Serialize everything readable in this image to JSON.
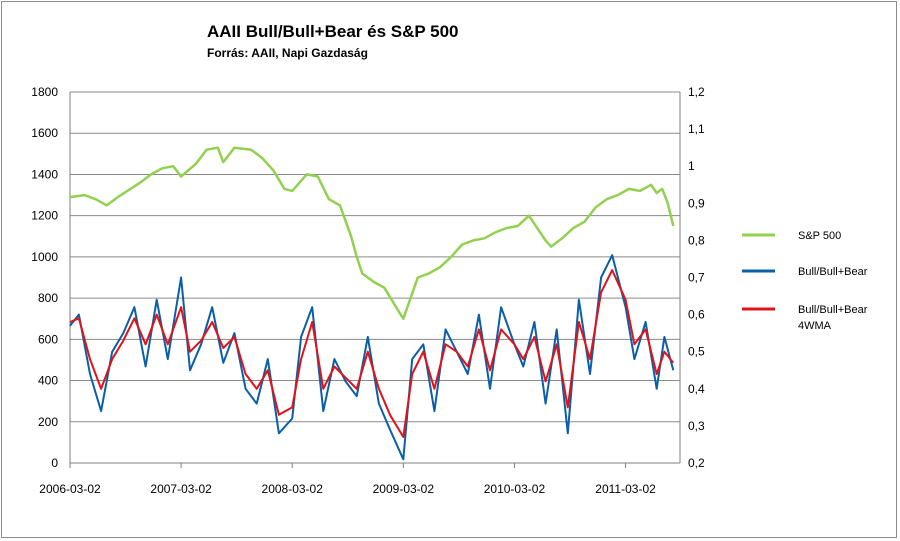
{
  "chart_data": {
    "type": "line",
    "title": "AAII Bull/Bull+Bear és S&P 500",
    "subtitle": "Forrás: AAII, Napi Gazdaság",
    "x_ticks": [
      "2006-03-02",
      "2007-03-02",
      "2008-03-02",
      "2009-03-02",
      "2010-03-02",
      "2011-03-02"
    ],
    "y_left": {
      "min": 0,
      "max": 1800,
      "step": 200,
      "ticks": [
        "0",
        "200",
        "400",
        "600",
        "800",
        "1000",
        "1200",
        "1400",
        "1600",
        "1800"
      ]
    },
    "y_right": {
      "min": 0.2,
      "max": 1.2,
      "step": 0.1,
      "ticks": [
        "0,2",
        "0,3",
        "0,4",
        "0,5",
        "0,6",
        "0,7",
        "0,8",
        "0,9",
        "1",
        "1,1",
        "1,2"
      ]
    },
    "grid": true,
    "legend_position": "right",
    "series": [
      {
        "name": "S&P 500",
        "axis": "left",
        "color": "#92d050",
        "x": [
          2006.17,
          2006.3,
          2006.4,
          2006.5,
          2006.6,
          2006.8,
          2006.9,
          2007.0,
          2007.1,
          2007.17,
          2007.3,
          2007.4,
          2007.5,
          2007.55,
          2007.65,
          2007.8,
          2007.9,
          2008.0,
          2008.1,
          2008.17,
          2008.3,
          2008.4,
          2008.5,
          2008.6,
          2008.7,
          2008.75,
          2008.8,
          2008.9,
          2009.0,
          2009.1,
          2009.17,
          2009.3,
          2009.4,
          2009.5,
          2009.6,
          2009.7,
          2009.8,
          2009.9,
          2010.0,
          2010.1,
          2010.2,
          2010.3,
          2010.4,
          2010.45,
          2010.5,
          2010.6,
          2010.7,
          2010.8,
          2010.9,
          2011.0,
          2011.1,
          2011.2,
          2011.3,
          2011.4,
          2011.45,
          2011.5,
          2011.55,
          2011.6
        ],
        "y": [
          1290,
          1300,
          1280,
          1250,
          1290,
          1360,
          1400,
          1430,
          1440,
          1390,
          1450,
          1520,
          1530,
          1460,
          1530,
          1520,
          1480,
          1420,
          1330,
          1320,
          1400,
          1390,
          1280,
          1250,
          1100,
          1000,
          920,
          880,
          850,
          760,
          700,
          900,
          920,
          950,
          1000,
          1060,
          1080,
          1090,
          1120,
          1140,
          1150,
          1200,
          1120,
          1080,
          1050,
          1090,
          1140,
          1170,
          1240,
          1280,
          1300,
          1330,
          1320,
          1350,
          1310,
          1330,
          1260,
          1150
        ]
      },
      {
        "name": "Bull/Bull+Bear",
        "axis": "right",
        "color": "#0b5ea8",
        "x": [
          2006.17,
          2006.25,
          2006.35,
          2006.45,
          2006.55,
          2006.65,
          2006.75,
          2006.85,
          2006.95,
          2007.05,
          2007.17,
          2007.25,
          2007.35,
          2007.45,
          2007.55,
          2007.65,
          2007.75,
          2007.85,
          2007.95,
          2008.05,
          2008.17,
          2008.25,
          2008.35,
          2008.45,
          2008.55,
          2008.65,
          2008.75,
          2008.85,
          2008.95,
          2009.05,
          2009.17,
          2009.25,
          2009.35,
          2009.45,
          2009.55,
          2009.65,
          2009.75,
          2009.85,
          2009.95,
          2010.05,
          2010.17,
          2010.25,
          2010.35,
          2010.45,
          2010.55,
          2010.65,
          2010.75,
          2010.85,
          2010.95,
          2011.05,
          2011.17,
          2011.25,
          2011.35,
          2011.45,
          2011.52,
          2011.6
        ],
        "y": [
          0.57,
          0.6,
          0.44,
          0.34,
          0.5,
          0.55,
          0.62,
          0.46,
          0.64,
          0.48,
          0.7,
          0.45,
          0.52,
          0.62,
          0.47,
          0.55,
          0.4,
          0.36,
          0.48,
          0.28,
          0.32,
          0.54,
          0.62,
          0.34,
          0.48,
          0.42,
          0.38,
          0.54,
          0.36,
          0.29,
          0.21,
          0.48,
          0.52,
          0.34,
          0.56,
          0.5,
          0.44,
          0.6,
          0.4,
          0.62,
          0.52,
          0.46,
          0.58,
          0.36,
          0.56,
          0.28,
          0.64,
          0.44,
          0.7,
          0.76,
          0.62,
          0.48,
          0.58,
          0.4,
          0.54,
          0.45
        ]
      },
      {
        "name": "Bull/Bull+Bear 4WMA",
        "axis": "right",
        "color": "#e0121a",
        "x": [
          2006.17,
          2006.25,
          2006.35,
          2006.45,
          2006.55,
          2006.65,
          2006.75,
          2006.85,
          2006.95,
          2007.05,
          2007.17,
          2007.25,
          2007.35,
          2007.45,
          2007.55,
          2007.65,
          2007.75,
          2007.85,
          2007.95,
          2008.05,
          2008.17,
          2008.25,
          2008.35,
          2008.45,
          2008.55,
          2008.65,
          2008.75,
          2008.85,
          2008.95,
          2009.05,
          2009.17,
          2009.25,
          2009.35,
          2009.45,
          2009.55,
          2009.65,
          2009.75,
          2009.85,
          2009.95,
          2010.05,
          2010.17,
          2010.25,
          2010.35,
          2010.45,
          2010.55,
          2010.65,
          2010.75,
          2010.85,
          2010.95,
          2011.05,
          2011.17,
          2011.25,
          2011.35,
          2011.45,
          2011.52,
          2011.6
        ],
        "y": [
          0.58,
          0.59,
          0.48,
          0.4,
          0.48,
          0.53,
          0.59,
          0.52,
          0.6,
          0.52,
          0.62,
          0.5,
          0.53,
          0.58,
          0.51,
          0.54,
          0.44,
          0.4,
          0.45,
          0.33,
          0.35,
          0.48,
          0.58,
          0.4,
          0.46,
          0.43,
          0.4,
          0.5,
          0.4,
          0.33,
          0.27,
          0.44,
          0.5,
          0.4,
          0.52,
          0.5,
          0.46,
          0.56,
          0.45,
          0.56,
          0.52,
          0.48,
          0.54,
          0.42,
          0.52,
          0.35,
          0.58,
          0.48,
          0.66,
          0.72,
          0.64,
          0.52,
          0.56,
          0.44,
          0.5,
          0.47
        ]
      }
    ]
  }
}
